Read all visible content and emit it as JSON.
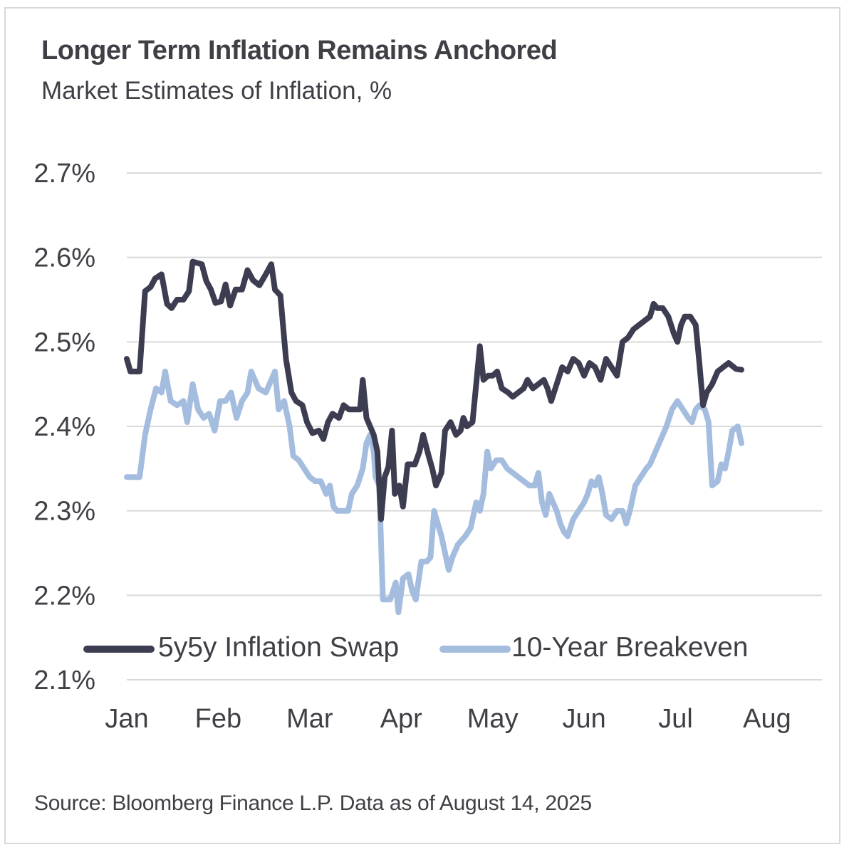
{
  "title": "Longer Term Inflation Remains Anchored",
  "subtitle": "Market Estimates of Inflation, %",
  "source": "Source: Bloomberg Finance L.P. Data as of August 14, 2025",
  "colors": {
    "series1": "#3d3d52",
    "series2": "#a4bddf",
    "grid": "#d9d9d9",
    "text": "#3f3f46"
  },
  "chart_data": {
    "type": "line",
    "title": "Longer Term Inflation Remains Anchored",
    "subtitle": "Market Estimates of Inflation, %",
    "ylim": [
      2.1,
      2.7
    ],
    "yticks": [
      2.7,
      2.6,
      2.5,
      2.4,
      2.3,
      2.2,
      2.1
    ],
    "ytick_labels": [
      "2.7%",
      "2.6%",
      "2.5%",
      "2.4%",
      "2.3%",
      "2.2%",
      "2.1%"
    ],
    "xlim": [
      0,
      7.6
    ],
    "xticks": [
      0,
      1,
      2,
      3,
      4,
      5,
      6,
      7
    ],
    "xtick_labels": [
      "Jan",
      "Feb",
      "Mar",
      "Apr",
      "May",
      "Jun",
      "Jul",
      "Aug"
    ],
    "grid": true,
    "legend": "bottom-left inside plot",
    "series": [
      {
        "name": "5y5y Inflation Swap",
        "points": [
          [
            0,
            2.48
          ],
          [
            0.04,
            2.465
          ],
          [
            0.14,
            2.465
          ],
          [
            0.2,
            2.56
          ],
          [
            0.26,
            2.565
          ],
          [
            0.31,
            2.575
          ],
          [
            0.38,
            2.58
          ],
          [
            0.44,
            2.545
          ],
          [
            0.49,
            2.54
          ],
          [
            0.55,
            2.55
          ],
          [
            0.62,
            2.55
          ],
          [
            0.68,
            2.56
          ],
          [
            0.72,
            2.595
          ],
          [
            0.82,
            2.592
          ],
          [
            0.87,
            2.572
          ],
          [
            0.92,
            2.562
          ],
          [
            0.97,
            2.546
          ],
          [
            1.03,
            2.548
          ],
          [
            1.08,
            2.568
          ],
          [
            1.13,
            2.543
          ],
          [
            1.19,
            2.562
          ],
          [
            1.26,
            2.562
          ],
          [
            1.32,
            2.585
          ],
          [
            1.38,
            2.573
          ],
          [
            1.45,
            2.567
          ],
          [
            1.52,
            2.58
          ],
          [
            1.58,
            2.592
          ],
          [
            1.62,
            2.562
          ],
          [
            1.68,
            2.555
          ],
          [
            1.74,
            2.48
          ],
          [
            1.8,
            2.44
          ],
          [
            1.85,
            2.43
          ],
          [
            1.92,
            2.425
          ],
          [
            1.97,
            2.405
          ],
          [
            2.03,
            2.392
          ],
          [
            2.1,
            2.395
          ],
          [
            2.15,
            2.385
          ],
          [
            2.2,
            2.405
          ],
          [
            2.25,
            2.415
          ],
          [
            2.32,
            2.41
          ],
          [
            2.37,
            2.425
          ],
          [
            2.43,
            2.42
          ],
          [
            2.5,
            2.42
          ],
          [
            2.55,
            2.42
          ],
          [
            2.58,
            2.455
          ],
          [
            2.62,
            2.41
          ],
          [
            2.7,
            2.39
          ],
          [
            2.74,
            2.37
          ],
          [
            2.78,
            2.29
          ],
          [
            2.82,
            2.34
          ],
          [
            2.86,
            2.352
          ],
          [
            2.9,
            2.395
          ],
          [
            2.93,
            2.32
          ],
          [
            2.98,
            2.33
          ],
          [
            3.02,
            2.305
          ],
          [
            3.07,
            2.355
          ],
          [
            3.15,
            2.355
          ],
          [
            3.2,
            2.37
          ],
          [
            3.24,
            2.39
          ],
          [
            3.3,
            2.365
          ],
          [
            3.34,
            2.35
          ],
          [
            3.38,
            2.33
          ],
          [
            3.44,
            2.345
          ],
          [
            3.48,
            2.395
          ],
          [
            3.54,
            2.405
          ],
          [
            3.6,
            2.39
          ],
          [
            3.65,
            2.395
          ],
          [
            3.68,
            2.41
          ],
          [
            3.72,
            2.4
          ],
          [
            3.78,
            2.405
          ],
          [
            3.82,
            2.45
          ],
          [
            3.86,
            2.495
          ],
          [
            3.9,
            2.455
          ],
          [
            3.95,
            2.46
          ],
          [
            4.0,
            2.46
          ],
          [
            4.05,
            2.465
          ],
          [
            4.1,
            2.445
          ],
          [
            4.17,
            2.44
          ],
          [
            4.22,
            2.435
          ],
          [
            4.28,
            2.44
          ],
          [
            4.34,
            2.445
          ],
          [
            4.38,
            2.455
          ],
          [
            4.44,
            2.445
          ],
          [
            4.5,
            2.45
          ],
          [
            4.56,
            2.455
          ],
          [
            4.6,
            2.445
          ],
          [
            4.64,
            2.43
          ],
          [
            4.7,
            2.45
          ],
          [
            4.76,
            2.47
          ],
          [
            4.82,
            2.465
          ],
          [
            4.88,
            2.48
          ],
          [
            4.94,
            2.475
          ],
          [
            5.0,
            2.46
          ],
          [
            5.06,
            2.475
          ],
          [
            5.12,
            2.47
          ],
          [
            5.18,
            2.455
          ],
          [
            5.24,
            2.48
          ],
          [
            5.3,
            2.47
          ],
          [
            5.36,
            2.46
          ],
          [
            5.42,
            2.5
          ],
          [
            5.48,
            2.505
          ],
          [
            5.54,
            2.515
          ],
          [
            5.6,
            2.52
          ],
          [
            5.66,
            2.525
          ],
          [
            5.72,
            2.53
          ],
          [
            5.76,
            2.545
          ],
          [
            5.8,
            2.54
          ],
          [
            5.86,
            2.54
          ],
          [
            5.92,
            2.53
          ],
          [
            5.98,
            2.51
          ],
          [
            6.02,
            2.5
          ],
          [
            6.06,
            2.52
          ],
          [
            6.1,
            2.53
          ],
          [
            6.16,
            2.53
          ],
          [
            6.22,
            2.52
          ],
          [
            6.26,
            2.475
          ],
          [
            6.3,
            2.425
          ],
          [
            6.34,
            2.44
          ],
          [
            6.4,
            2.45
          ],
          [
            6.46,
            2.465
          ],
          [
            6.52,
            2.47
          ],
          [
            6.58,
            2.475
          ],
          [
            6.66,
            2.468
          ],
          [
            6.72,
            2.467
          ]
        ]
      },
      {
        "name": "10-Year Breakeven",
        "points": [
          [
            0,
            2.34
          ],
          [
            0.14,
            2.34
          ],
          [
            0.2,
            2.39
          ],
          [
            0.26,
            2.42
          ],
          [
            0.32,
            2.445
          ],
          [
            0.38,
            2.44
          ],
          [
            0.42,
            2.465
          ],
          [
            0.48,
            2.43
          ],
          [
            0.55,
            2.425
          ],
          [
            0.62,
            2.43
          ],
          [
            0.66,
            2.405
          ],
          [
            0.72,
            2.45
          ],
          [
            0.78,
            2.42
          ],
          [
            0.84,
            2.41
          ],
          [
            0.9,
            2.415
          ],
          [
            0.96,
            2.395
          ],
          [
            1.02,
            2.43
          ],
          [
            1.08,
            2.43
          ],
          [
            1.14,
            2.44
          ],
          [
            1.2,
            2.41
          ],
          [
            1.26,
            2.43
          ],
          [
            1.32,
            2.44
          ],
          [
            1.36,
            2.465
          ],
          [
            1.4,
            2.455
          ],
          [
            1.44,
            2.445
          ],
          [
            1.52,
            2.44
          ],
          [
            1.58,
            2.455
          ],
          [
            1.62,
            2.465
          ],
          [
            1.66,
            2.42
          ],
          [
            1.72,
            2.43
          ],
          [
            1.78,
            2.4
          ],
          [
            1.82,
            2.365
          ],
          [
            1.88,
            2.36
          ],
          [
            1.94,
            2.35
          ],
          [
            2.0,
            2.34
          ],
          [
            2.06,
            2.335
          ],
          [
            2.12,
            2.335
          ],
          [
            2.18,
            2.32
          ],
          [
            2.22,
            2.33
          ],
          [
            2.26,
            2.305
          ],
          [
            2.3,
            2.3
          ],
          [
            2.36,
            2.3
          ],
          [
            2.42,
            2.3
          ],
          [
            2.46,
            2.32
          ],
          [
            2.52,
            2.33
          ],
          [
            2.58,
            2.35
          ],
          [
            2.62,
            2.38
          ],
          [
            2.66,
            2.39
          ],
          [
            2.7,
            2.37
          ],
          [
            2.72,
            2.34
          ],
          [
            2.76,
            2.33
          ],
          [
            2.8,
            2.195
          ],
          [
            2.88,
            2.195
          ],
          [
            2.94,
            2.215
          ],
          [
            2.97,
            2.18
          ],
          [
            3.02,
            2.22
          ],
          [
            3.08,
            2.225
          ],
          [
            3.12,
            2.205
          ],
          [
            3.16,
            2.195
          ],
          [
            3.22,
            2.24
          ],
          [
            3.28,
            2.24
          ],
          [
            3.32,
            2.245
          ],
          [
            3.36,
            2.3
          ],
          [
            3.4,
            2.285
          ],
          [
            3.44,
            2.27
          ],
          [
            3.48,
            2.25
          ],
          [
            3.52,
            2.23
          ],
          [
            3.56,
            2.245
          ],
          [
            3.62,
            2.26
          ],
          [
            3.66,
            2.265
          ],
          [
            3.7,
            2.27
          ],
          [
            3.76,
            2.28
          ],
          [
            3.82,
            2.31
          ],
          [
            3.86,
            2.3
          ],
          [
            3.9,
            2.32
          ],
          [
            3.94,
            2.37
          ],
          [
            3.98,
            2.35
          ],
          [
            4.04,
            2.36
          ],
          [
            4.1,
            2.36
          ],
          [
            4.16,
            2.35
          ],
          [
            4.22,
            2.345
          ],
          [
            4.28,
            2.34
          ],
          [
            4.34,
            2.335
          ],
          [
            4.4,
            2.33
          ],
          [
            4.46,
            2.33
          ],
          [
            4.5,
            2.345
          ],
          [
            4.54,
            2.31
          ],
          [
            4.58,
            2.295
          ],
          [
            4.62,
            2.32
          ],
          [
            4.66,
            2.31
          ],
          [
            4.7,
            2.3
          ],
          [
            4.74,
            2.285
          ],
          [
            4.78,
            2.275
          ],
          [
            4.82,
            2.27
          ],
          [
            4.88,
            2.29
          ],
          [
            4.94,
            2.3
          ],
          [
            5.0,
            2.31
          ],
          [
            5.04,
            2.32
          ],
          [
            5.08,
            2.335
          ],
          [
            5.12,
            2.33
          ],
          [
            5.16,
            2.34
          ],
          [
            5.2,
            2.32
          ],
          [
            5.24,
            2.295
          ],
          [
            5.3,
            2.29
          ],
          [
            5.36,
            2.3
          ],
          [
            5.42,
            2.3
          ],
          [
            5.46,
            2.285
          ],
          [
            5.5,
            2.3
          ],
          [
            5.56,
            2.33
          ],
          [
            5.62,
            2.34
          ],
          [
            5.68,
            2.35
          ],
          [
            5.72,
            2.355
          ],
          [
            5.78,
            2.37
          ],
          [
            5.84,
            2.385
          ],
          [
            5.9,
            2.4
          ],
          [
            5.96,
            2.42
          ],
          [
            6.02,
            2.43
          ],
          [
            6.08,
            2.42
          ],
          [
            6.14,
            2.41
          ],
          [
            6.18,
            2.405
          ],
          [
            6.22,
            2.42
          ],
          [
            6.26,
            2.425
          ],
          [
            6.32,
            2.42
          ],
          [
            6.36,
            2.405
          ],
          [
            6.4,
            2.33
          ],
          [
            6.46,
            2.335
          ],
          [
            6.5,
            2.355
          ],
          [
            6.54,
            2.35
          ],
          [
            6.58,
            2.37
          ],
          [
            6.62,
            2.395
          ],
          [
            6.68,
            2.4
          ],
          [
            6.72,
            2.38
          ]
        ]
      }
    ]
  }
}
